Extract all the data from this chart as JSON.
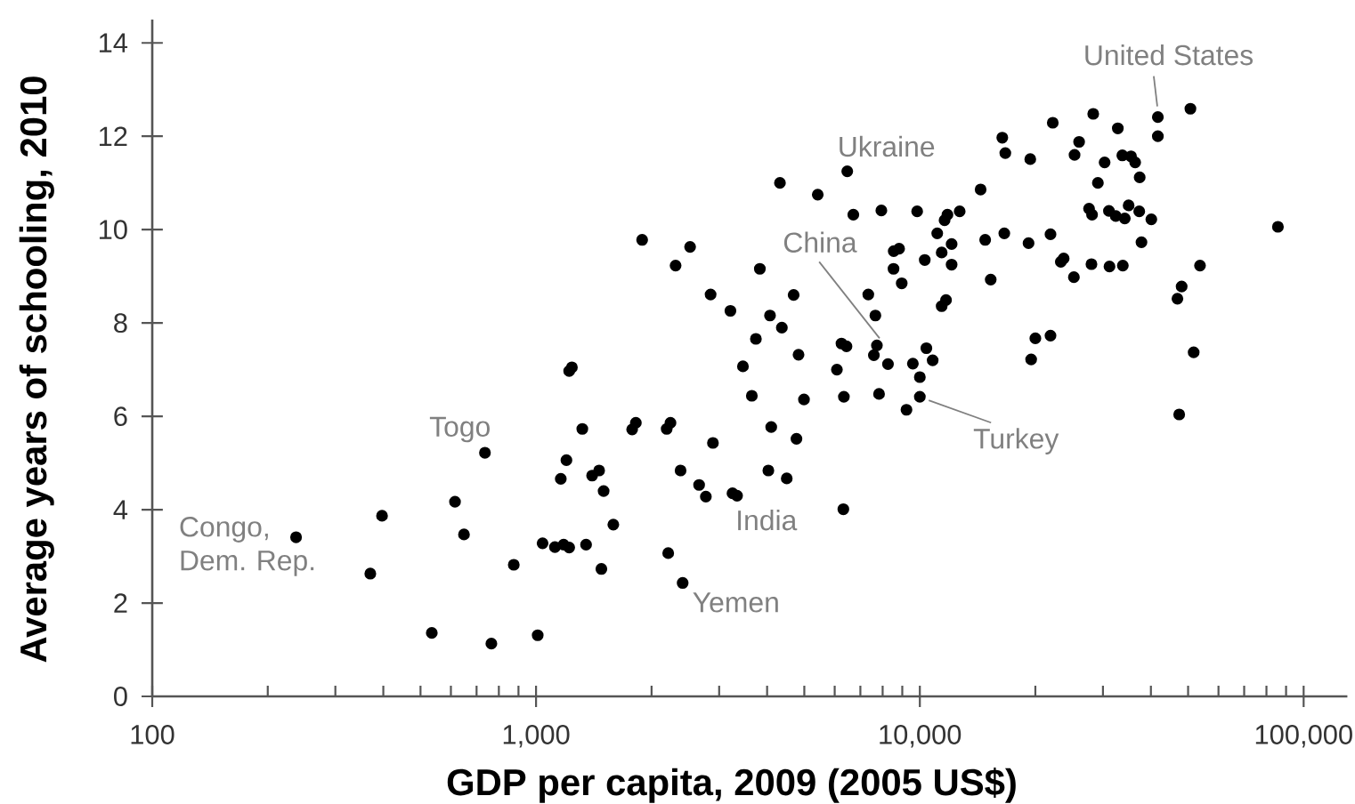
{
  "chart_data": {
    "type": "scatter",
    "xlabel": "GDP per capita, 2009 (2005 US$)",
    "ylabel": "Average years of schooling, 2010",
    "log": "x",
    "color": "#000000",
    "marker": "circle",
    "xlim": [
      100,
      130000
    ],
    "ylim": [
      0,
      14.5
    ],
    "xticks": [
      100,
      {
        "value": 200,
        "label": null
      },
      {
        "value": 300,
        "label": null
      },
      {
        "value": 400,
        "label": null
      },
      {
        "value": 500,
        "label": null
      },
      {
        "value": 600,
        "label": null
      },
      {
        "value": 700,
        "label": null
      },
      {
        "value": 800,
        "label": null
      },
      {
        "value": 900,
        "label": null
      },
      {
        "value": 1000,
        "label": "1,000"
      },
      {
        "value": 2000,
        "label": null
      },
      {
        "value": 3000,
        "label": null
      },
      {
        "value": 4000,
        "label": null
      },
      {
        "value": 5000,
        "label": null
      },
      {
        "value": 6000,
        "label": null
      },
      {
        "value": 7000,
        "label": null
      },
      {
        "value": 8000,
        "label": null
      },
      {
        "value": 9000,
        "label": null
      },
      {
        "value": 10000,
        "label": "10,000"
      },
      {
        "value": 20000,
        "label": null
      },
      {
        "value": 30000,
        "label": null
      },
      {
        "value": 40000,
        "label": null
      },
      {
        "value": 50000,
        "label": null
      },
      {
        "value": 60000,
        "label": null
      },
      {
        "value": 70000,
        "label": null
      },
      {
        "value": 80000,
        "label": null
      },
      {
        "value": 90000,
        "label": null
      },
      {
        "value": 100000,
        "label": "100,000"
      }
    ],
    "yticks": [
      0,
      2,
      4,
      6,
      8,
      10,
      12,
      14
    ],
    "x": [
      237,
      370,
      397,
      535,
      615,
      649,
      736,
      765,
      875,
      1010,
      1040,
      1120,
      1180,
      1160,
      1200,
      1220,
      1350,
      1480,
      1590,
      1500,
      1400,
      1460,
      2380,
      2660,
      2770,
      3250,
      3340,
      2210,
      2410,
      4030,
      4500,
      6320,
      1320,
      1780,
      1820,
      2190,
      2240,
      2890,
      4100,
      4770,
      3650,
      4990,
      6340,
      7830,
      10000,
      9230,
      1220,
      1240,
      6470,
      4320,
      5420,
      6710,
      7940,
      9840,
      1890,
      2520,
      2310,
      3830,
      2850,
      3210,
      4690,
      4070,
      4370,
      3740,
      3460,
      4830,
      6250,
      6440,
      6080,
      7340,
      7660,
      7730,
      7590,
      8260,
      9590,
      10400,
      10800,
      10000,
      8550,
      8830,
      8540,
      8970,
      10300,
      11100,
      11600,
      11800,
      12700,
      12100,
      11400,
      12100,
      11400,
      11700,
      50700,
      41700,
      41700,
      28300,
      32800,
      22200,
      16400,
      16700,
      19400,
      26000,
      25300,
      30300,
      33700,
      35500,
      36400,
      37400,
      29100,
      14400,
      14800,
      16600,
      19200,
      21900,
      15300,
      23300,
      23700,
      25200,
      28000,
      31200,
      33800,
      27600,
      28100,
      31100,
      32400,
      34200,
      35000,
      37300,
      40100,
      37800,
      53700,
      48100,
      46900,
      85700,
      20000,
      21900,
      19500,
      51700,
      47400
    ],
    "values": [
      3.41,
      2.63,
      3.87,
      1.36,
      4.17,
      3.47,
      5.22,
      1.13,
      2.82,
      1.31,
      3.28,
      3.2,
      3.25,
      4.66,
      5.06,
      3.19,
      3.25,
      2.73,
      3.68,
      4.4,
      4.73,
      4.84,
      4.84,
      4.53,
      4.28,
      4.35,
      4.3,
      3.07,
      2.43,
      4.84,
      4.67,
      4.01,
      5.73,
      5.72,
      5.86,
      5.73,
      5.86,
      5.43,
      5.77,
      5.52,
      6.44,
      6.36,
      6.42,
      6.48,
      6.42,
      6.14,
      6.97,
      7.05,
      11.25,
      11.0,
      10.75,
      10.32,
      10.41,
      10.39,
      9.78,
      9.63,
      9.23,
      9.16,
      8.61,
      8.26,
      8.6,
      8.16,
      7.9,
      7.66,
      7.07,
      7.32,
      7.56,
      7.5,
      7.0,
      8.61,
      8.16,
      7.52,
      7.31,
      7.12,
      7.13,
      7.46,
      7.2,
      6.84,
      9.54,
      9.59,
      9.16,
      8.85,
      9.35,
      9.92,
      10.2,
      10.32,
      10.39,
      9.69,
      9.51,
      9.25,
      8.36,
      8.49,
      12.59,
      12.41,
      12.0,
      12.48,
      12.17,
      12.29,
      11.97,
      11.64,
      11.51,
      11.88,
      11.6,
      11.44,
      11.59,
      11.57,
      11.44,
      11.12,
      11.0,
      10.86,
      9.78,
      9.92,
      9.71,
      9.9,
      8.93,
      9.31,
      9.38,
      8.98,
      9.26,
      9.21,
      9.23,
      10.45,
      10.32,
      10.4,
      10.29,
      10.24,
      10.52,
      10.39,
      10.22,
      9.73,
      9.23,
      8.78,
      8.52,
      10.06,
      7.67,
      7.73,
      7.22,
      7.37,
      6.04
    ],
    "annotations": [
      {
        "text": "United States",
        "x": 41700,
        "y": 12.41
      },
      {
        "text": "Ukraine",
        "x": 6470,
        "y": 11.25
      },
      {
        "text": "China",
        "x": 7730,
        "y": 7.52
      },
      {
        "text": "Turkey",
        "x": 10000,
        "y": 6.42
      },
      {
        "text": "Togo",
        "x": 736,
        "y": 5.22
      },
      {
        "text": "Congo, Dem. Rep.",
        "x": 237,
        "y": 3.41
      },
      {
        "text": "India",
        "x": 3250,
        "y": 4.35
      },
      {
        "text": "Yemen",
        "x": 2410,
        "y": 2.43
      }
    ]
  }
}
